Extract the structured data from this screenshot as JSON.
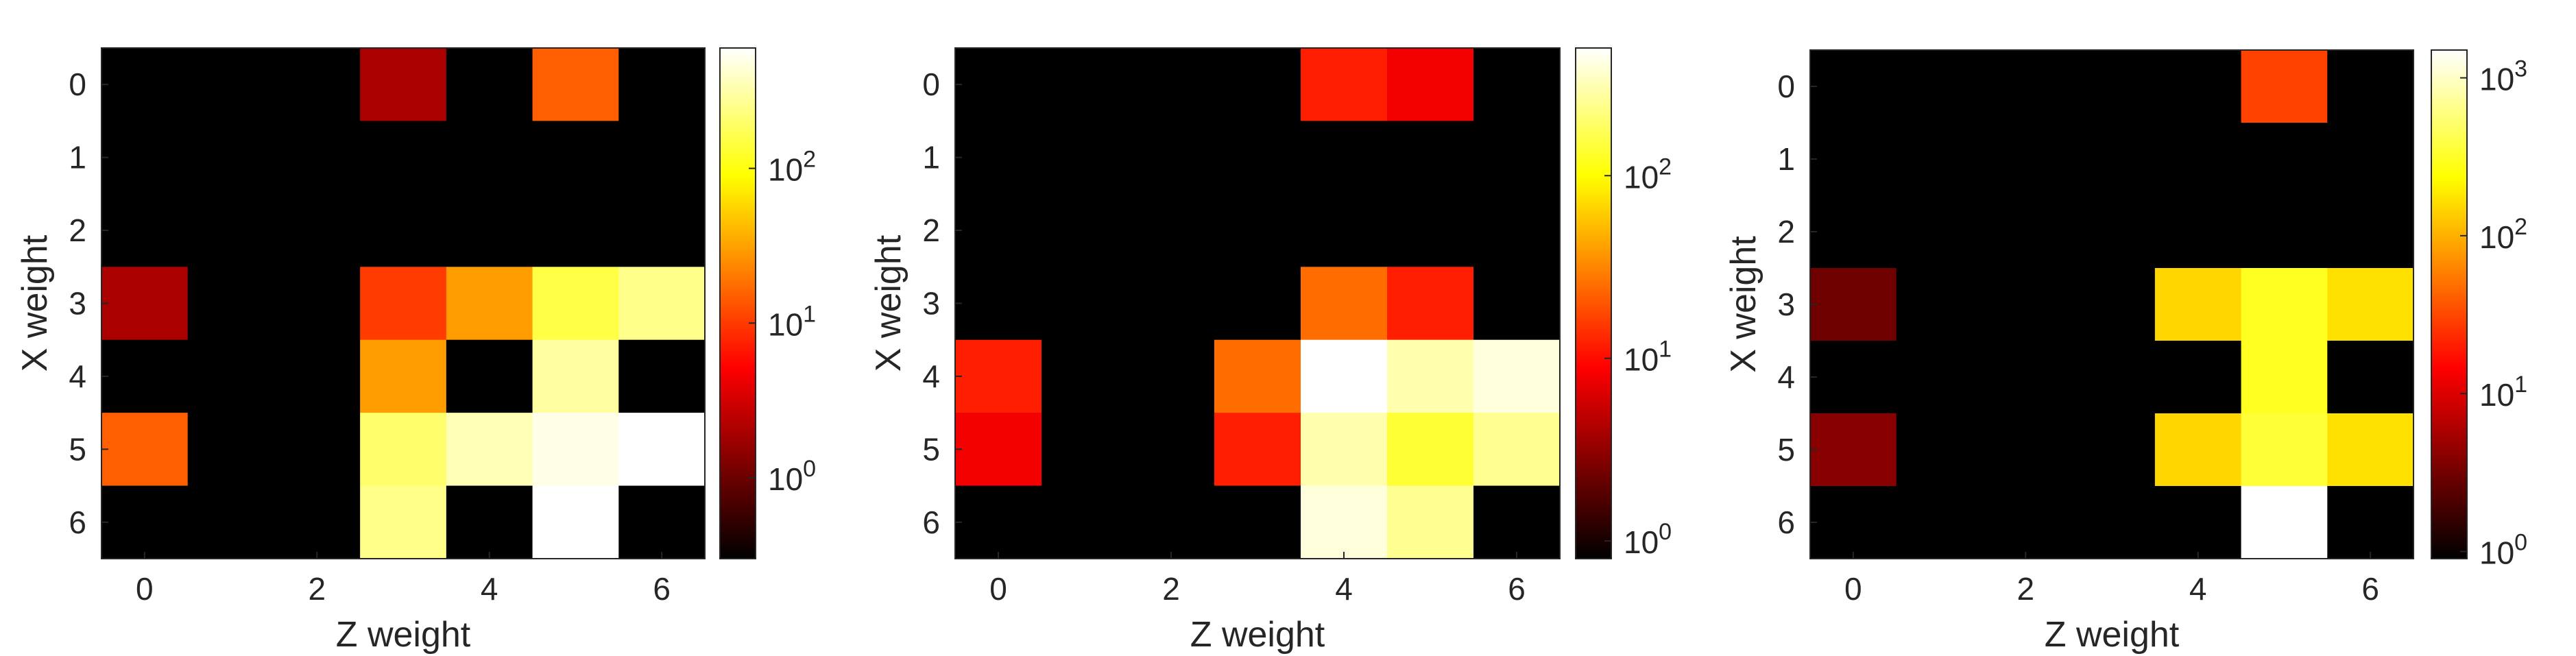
{
  "chart_data": [
    {
      "type": "heatmap",
      "xlabel": "Z weight",
      "ylabel": "X weight",
      "x": [
        0,
        1,
        2,
        3,
        4,
        5,
        6
      ],
      "y": [
        0,
        1,
        2,
        3,
        4,
        5,
        6
      ],
      "x_ticks": [
        "0",
        "2",
        "4",
        "6"
      ],
      "y_ticks": [
        "0",
        "1",
        "2",
        "3",
        "4",
        "5",
        "6"
      ],
      "colormap": "hot",
      "color_scale": "log",
      "zlim": [
        0.3,
        600
      ],
      "colorbar_ticks": [
        {
          "value": 1,
          "base": "10",
          "exp": "0"
        },
        {
          "value": 10,
          "base": "10",
          "exp": "1"
        },
        {
          "value": 100,
          "base": "10",
          "exp": "2"
        }
      ],
      "z": [
        [
          0,
          0,
          0,
          2,
          0,
          15,
          0
        ],
        [
          0,
          0,
          0,
          0,
          0,
          0,
          0
        ],
        [
          0,
          0,
          0,
          0,
          0,
          0,
          0
        ],
        [
          2,
          0,
          0,
          10,
          30,
          150,
          250
        ],
        [
          0,
          0,
          0,
          30,
          0,
          300,
          0
        ],
        [
          15,
          0,
          0,
          200,
          350,
          500,
          600
        ],
        [
          0,
          0,
          0,
          250,
          0,
          600,
          0
        ]
      ]
    },
    {
      "type": "heatmap",
      "xlabel": "Z weight",
      "ylabel": "X weight",
      "x": [
        0,
        1,
        2,
        3,
        4,
        5,
        6
      ],
      "y": [
        0,
        1,
        2,
        3,
        4,
        5,
        6
      ],
      "x_ticks": [
        "0",
        "2",
        "4",
        "6"
      ],
      "y_ticks": [
        "0",
        "1",
        "2",
        "3",
        "4",
        "5",
        "6"
      ],
      "colormap": "hot",
      "color_scale": "log",
      "zlim": [
        0.8,
        500
      ],
      "colorbar_ticks": [
        {
          "value": 1,
          "base": "10",
          "exp": "0"
        },
        {
          "value": 10,
          "base": "10",
          "exp": "1"
        },
        {
          "value": 100,
          "base": "10",
          "exp": "2"
        }
      ],
      "z": [
        [
          0,
          0,
          0,
          0,
          12,
          8,
          0
        ],
        [
          0,
          0,
          0,
          0,
          0,
          0,
          0
        ],
        [
          0,
          0,
          0,
          0,
          0,
          0,
          0
        ],
        [
          0,
          0,
          0,
          0,
          25,
          12,
          0
        ],
        [
          12,
          0,
          0,
          25,
          500,
          300,
          400
        ],
        [
          8,
          0,
          0,
          12,
          300,
          140,
          250
        ],
        [
          0,
          0,
          0,
          0,
          400,
          250,
          0
        ]
      ]
    },
    {
      "type": "heatmap",
      "xlabel": "Z weight",
      "ylabel": "X weight",
      "x": [
        0,
        1,
        2,
        3,
        4,
        5,
        6
      ],
      "y": [
        0,
        1,
        2,
        3,
        4,
        5,
        6
      ],
      "x_ticks": [
        "0",
        "2",
        "4",
        "6"
      ],
      "y_ticks": [
        "0",
        "1",
        "2",
        "3",
        "4",
        "5",
        "6"
      ],
      "colormap": "hot",
      "color_scale": "log",
      "zlim": [
        0.9,
        1500
      ],
      "colorbar_ticks": [
        {
          "value": 1,
          "base": "10",
          "exp": "0"
        },
        {
          "value": 10,
          "base": "10",
          "exp": "1"
        },
        {
          "value": 100,
          "base": "10",
          "exp": "2"
        },
        {
          "value": 1000,
          "base": "10",
          "exp": "3"
        }
      ],
      "z": [
        [
          0,
          0,
          0,
          0,
          0,
          30,
          0
        ],
        [
          0,
          0,
          0,
          0,
          0,
          0,
          0
        ],
        [
          0,
          0,
          0,
          0,
          0,
          0,
          0
        ],
        [
          3,
          0,
          0,
          0,
          150,
          300,
          170
        ],
        [
          0,
          0,
          0,
          0,
          0,
          300,
          0
        ],
        [
          4,
          0,
          0,
          0,
          150,
          350,
          170
        ],
        [
          0,
          0,
          0,
          0,
          0,
          1500,
          0
        ]
      ]
    }
  ]
}
